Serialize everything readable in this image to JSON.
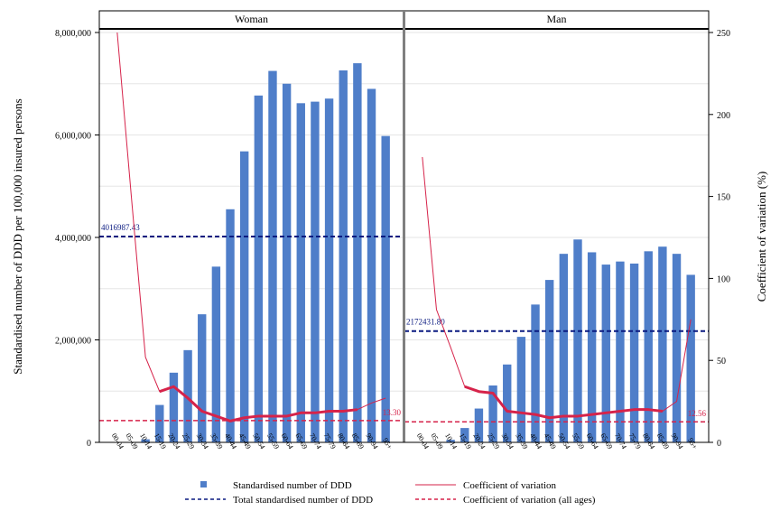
{
  "chart_data": {
    "type": "bar",
    "categories": [
      "00-04",
      "05-09",
      "10-14",
      "15-19",
      "20-24",
      "25-29",
      "30-34",
      "35-39",
      "40-44",
      "45-49",
      "50-54",
      "55-59",
      "60-64",
      "65-69",
      "70-74",
      "75-79",
      "80-84",
      "85-89",
      "90-94",
      "95+"
    ],
    "ylabel": "Standardised number of DDD per 100,000 insured persons",
    "y2label": "Coefficient of variation (%)",
    "ylim": [
      0,
      8000000
    ],
    "y2lim": [
      0,
      250
    ],
    "yticks": [
      "0",
      "2,000,000",
      "4,000,000",
      "6,000,000",
      "8,000,000"
    ],
    "y2ticks": [
      "0",
      "50",
      "100",
      "150",
      "200",
      "250"
    ],
    "panels": [
      {
        "title": "Woman",
        "ddd": [
          0,
          0,
          60000,
          730000,
          1360000,
          1800000,
          2500000,
          3430000,
          4550000,
          5680000,
          6770000,
          7250000,
          7000000,
          6620000,
          6650000,
          6710000,
          7260000,
          7400000,
          6900000,
          5980000
        ],
        "cv": [
          250,
          150,
          52,
          31,
          34,
          27,
          19,
          16,
          13,
          15,
          16,
          16,
          16,
          18,
          18,
          19,
          19,
          20,
          24,
          27
        ],
        "cv_bold_until_index": 17,
        "total_ddd": 4016987.43,
        "total_ddd_label": "4016987.43",
        "cv_all_ages": 13.3,
        "cv_all_ages_label": "13.30"
      },
      {
        "title": "Man",
        "ddd": [
          0,
          0,
          50000,
          280000,
          660000,
          1110000,
          1520000,
          2060000,
          2690000,
          3170000,
          3680000,
          3960000,
          3710000,
          3470000,
          3530000,
          3490000,
          3730000,
          3820000,
          3680000,
          3270000
        ],
        "cv": [
          174,
          81,
          58,
          34,
          31,
          30,
          19,
          18,
          17,
          15,
          16,
          16,
          17,
          18,
          19,
          20,
          20,
          19,
          25,
          75
        ],
        "cv_bold_until_index": 17,
        "total_ddd": 2172431.8,
        "total_ddd_label": "2172431.80",
        "cv_all_ages": 12.56,
        "cv_all_ages_label": "12.56"
      }
    ],
    "legend": [
      {
        "label": "Standardised number of DDD",
        "kind": "square"
      },
      {
        "label": "Coefficient of variation",
        "kind": "line"
      },
      {
        "label": "Total standardised number of DDD",
        "kind": "dash-navy"
      },
      {
        "label": "Coefficient of variation (all ages)",
        "kind": "dash-red"
      }
    ],
    "colors": {
      "bar": "#4f7ec9",
      "cv_line": "#d6234a",
      "total_line": "#0a1a80",
      "cv_all_line": "#d6234a",
      "grid": "#e6e6e6",
      "frame": "#000000",
      "panel_divider": "#808080"
    }
  }
}
